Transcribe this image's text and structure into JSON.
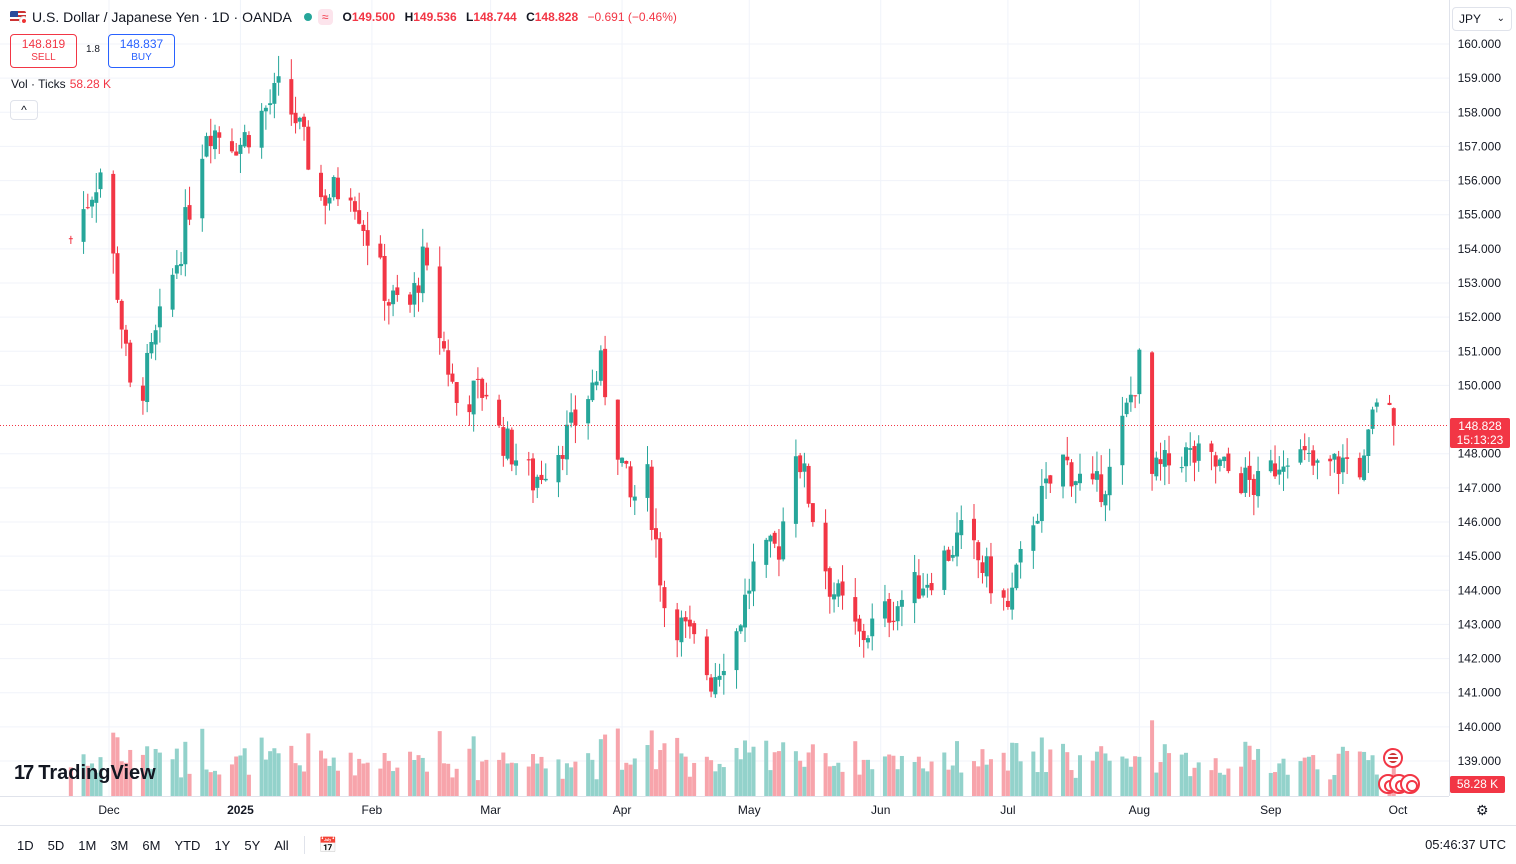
{
  "legend": {
    "title": "U.S. Dollar / Japanese Yen · 1D · OANDA",
    "wave_badge": "≈",
    "open_label": "O",
    "open": "149.500",
    "high_label": "H",
    "high": "149.536",
    "low_label": "L",
    "low": "148.744",
    "close_label": "C",
    "close": "148.828",
    "change": "−0.691 (−0.46%)",
    "status_color": "#26a69a"
  },
  "trade": {
    "sell_price": "148.819",
    "sell_label": "SELL",
    "spread": "1.8",
    "buy_price": "148.837",
    "buy_label": "BUY"
  },
  "volume_legend": {
    "label": "Vol · Ticks",
    "value": "58.28 K"
  },
  "collapse_icon": "^",
  "currency_select": "JPY",
  "price_tag": {
    "price": "148.828",
    "countdown": "15:13:23"
  },
  "volume_tag": "58.28 K",
  "logo_text": "TradingView",
  "toolbar": {
    "timeframes": [
      "1D",
      "5D",
      "1M",
      "3M",
      "6M",
      "YTD",
      "1Y",
      "5Y",
      "All"
    ],
    "clock": "05:46:37 UTC"
  },
  "colors": {
    "up": "#26a69a",
    "down": "#f23645",
    "up_vol": "#93d2cb",
    "down_vol": "#f7a4ab"
  },
  "chart_data": {
    "type": "candlestick",
    "title": "U.S. Dollar / Japanese Yen · 1D · OANDA",
    "ylim": [
      138.5,
      160.5
    ],
    "y_ticks": [
      "160.000",
      "159.000",
      "158.000",
      "157.000",
      "156.000",
      "155.000",
      "154.000",
      "153.000",
      "152.000",
      "151.000",
      "150.000",
      "148.000",
      "147.000",
      "146.000",
      "145.000",
      "144.000",
      "143.000",
      "142.000",
      "141.000",
      "140.000",
      "139.000"
    ],
    "x_ticks": [
      "Dec",
      "2025",
      "Feb",
      "Mar",
      "Apr",
      "May",
      "Jun",
      "Jul",
      "Aug",
      "Sep",
      "Oct"
    ],
    "last_price": 148.828,
    "grid": true,
    "series": [
      {
        "name": "USDJPY",
        "anchors": [
          [
            "Nov 22",
            154.3
          ],
          [
            "Nov 29",
            156.3
          ],
          [
            "Dec 3",
            152.8
          ],
          [
            "Dec 6",
            149.8
          ],
          [
            "Dec 9",
            150.0
          ],
          [
            "Dec 13",
            151.8
          ],
          [
            "Dec 18",
            154.1
          ],
          [
            "Dec 24",
            157.6
          ],
          [
            "Jan 1",
            157.1
          ],
          [
            "Jan 10",
            158.6
          ],
          [
            "Jan 14",
            157.8
          ],
          [
            "Jan 20",
            155.5
          ],
          [
            "Jan 27",
            155.9
          ],
          [
            "Feb 5",
            152.5
          ],
          [
            "Feb 10",
            152.3
          ],
          [
            "Feb 13",
            153.6
          ],
          [
            "Feb 21",
            149.5
          ],
          [
            "Feb 28",
            149.9
          ],
          [
            "Mar 3",
            148.6
          ],
          [
            "Mar 11",
            147.2
          ],
          [
            "Mar 20",
            148.7
          ],
          [
            "Mar 27",
            150.5
          ],
          [
            "Apr 3",
            146.6
          ],
          [
            "Apr 7",
            147.2
          ],
          [
            "Apr 11",
            143.6
          ],
          [
            "Apr 18",
            142.4
          ],
          [
            "Apr 22",
            141.4
          ],
          [
            "Apr 28",
            142.8
          ],
          [
            "May 2",
            144.6
          ],
          [
            "May 8",
            145.3
          ],
          [
            "May 12",
            148.3
          ],
          [
            "May 20",
            144.2
          ],
          [
            "May 27",
            142.6
          ],
          [
            "Jun 3",
            143.4
          ],
          [
            "Jun 13",
            144.5
          ],
          [
            "Jun 20",
            145.6
          ],
          [
            "Jun 27",
            144.3
          ],
          [
            "Jul 1",
            143.4
          ],
          [
            "Jul 7",
            146.2
          ],
          [
            "Jul 14",
            147.8
          ],
          [
            "Jul 21",
            146.8
          ],
          [
            "Jul 25",
            147.4
          ],
          [
            "Aug 1",
            150.6
          ],
          [
            "Aug 4",
            147.3
          ],
          [
            "Aug 11",
            148.0
          ],
          [
            "Aug 20",
            147.6
          ],
          [
            "Aug 29",
            147.0
          ],
          [
            "Sep 5",
            148.2
          ],
          [
            "Sep 12",
            147.5
          ],
          [
            "Sep 19",
            147.8
          ],
          [
            "Sep 23",
            147.6
          ],
          [
            "Sep 26",
            149.7
          ],
          [
            "Sep 30",
            148.8
          ]
        ]
      }
    ],
    "volume": {
      "name": "Vol · Ticks",
      "last": "58.28 K"
    }
  }
}
